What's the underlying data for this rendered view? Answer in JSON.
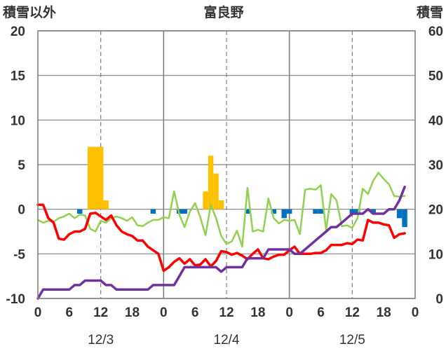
{
  "chart_data": {
    "type": "line",
    "title": "富良野",
    "left_axis_label": "積雪以外",
    "right_axis_label": "積雪",
    "left_ylim": [
      -10,
      20
    ],
    "left_ticks": [
      "20",
      "15",
      "10",
      "5",
      "0",
      "-5",
      "-10"
    ],
    "right_ylim": [
      0,
      60
    ],
    "right_ticks": [
      "60",
      "50",
      "40",
      "30",
      "20",
      "10",
      "0"
    ],
    "x_hours": [
      0,
      72
    ],
    "x_tick_labels": [
      "0",
      "6",
      "12",
      "18",
      "0",
      "6",
      "12",
      "18",
      "0",
      "6",
      "12",
      "18",
      "0"
    ],
    "date_labels": [
      "12/3",
      "12/4",
      "12/5"
    ],
    "grid": true,
    "colors": {
      "temperature": "#ff0000",
      "temperature_2": "#92d050",
      "snow_depth": "#7030a0",
      "snowfall": "#ffc000",
      "change": "#0070c0",
      "grid": "#808080"
    },
    "series": [
      {
        "key": "temperature",
        "axis": "left",
        "type": "line",
        "points": [
          [
            0,
            0.5
          ],
          [
            1,
            0.5
          ],
          [
            2,
            -1
          ],
          [
            3,
            -1.5
          ],
          [
            4,
            -3.3
          ],
          [
            5,
            -3.4
          ],
          [
            6,
            -2.8
          ],
          [
            7,
            -2.5
          ],
          [
            8,
            -2.5
          ],
          [
            9,
            -2.2
          ],
          [
            10,
            -0.5
          ],
          [
            11,
            -0.4
          ],
          [
            12,
            -0.8
          ],
          [
            13,
            -1.2
          ],
          [
            14,
            -0.7
          ],
          [
            15,
            -1.8
          ],
          [
            16,
            -2.5
          ],
          [
            17,
            -2.8
          ],
          [
            18,
            -3.0
          ],
          [
            19,
            -3.5
          ],
          [
            20,
            -3.5
          ],
          [
            21,
            -4.2
          ],
          [
            22,
            -4.6
          ],
          [
            23,
            -5.0
          ],
          [
            24,
            -6.9
          ],
          [
            25,
            -6.5
          ],
          [
            26,
            -5.9
          ],
          [
            27,
            -5.5
          ],
          [
            28,
            -6.1
          ],
          [
            29,
            -5.6
          ],
          [
            30,
            -6.3
          ],
          [
            31,
            -6.2
          ],
          [
            32,
            -5.6
          ],
          [
            33,
            -6.4
          ],
          [
            34,
            -5.8
          ],
          [
            35,
            -4.7
          ],
          [
            36,
            -4.8
          ],
          [
            37,
            -5.1
          ],
          [
            38,
            -4.9
          ],
          [
            39,
            -5.2
          ],
          [
            40,
            -5.6
          ],
          [
            41,
            -5.0
          ],
          [
            42,
            -4.5
          ],
          [
            43,
            -5.5
          ],
          [
            44,
            -5.6
          ],
          [
            45,
            -5.3
          ],
          [
            46,
            -5.1
          ],
          [
            47,
            -5.1
          ],
          [
            48,
            -4.6
          ],
          [
            49,
            -4.2
          ],
          [
            50,
            -5.0
          ],
          [
            51,
            -5.0
          ],
          [
            52,
            -5.0
          ],
          [
            53,
            -4.9
          ],
          [
            54,
            -4.9
          ],
          [
            55,
            -4.6
          ],
          [
            56,
            -4.0
          ],
          [
            57,
            -4.0
          ],
          [
            58,
            -4.0
          ],
          [
            59,
            -3.8
          ],
          [
            60,
            -3.9
          ],
          [
            61,
            -3.4
          ],
          [
            62,
            -3.5
          ],
          [
            63,
            -1.2
          ],
          [
            64,
            -1.5
          ],
          [
            65,
            -1.5
          ],
          [
            66,
            -1.7
          ],
          [
            67,
            -1.8
          ],
          [
            68,
            -3.2
          ],
          [
            69,
            -2.8
          ],
          [
            70,
            -2.7
          ]
        ]
      },
      {
        "key": "temperature_2",
        "axis": "left",
        "type": "line",
        "points": [
          [
            0,
            -1.2
          ],
          [
            1,
            -1.5
          ],
          [
            2,
            -1.3
          ],
          [
            3,
            -1.4
          ],
          [
            4,
            -1.0
          ],
          [
            5,
            -0.8
          ],
          [
            6,
            -0.5
          ],
          [
            7,
            -1.0
          ],
          [
            8,
            -0.6
          ],
          [
            9,
            -0.7
          ],
          [
            10,
            -2.2
          ],
          [
            11,
            -2.5
          ],
          [
            12,
            -1.3
          ],
          [
            13,
            -1.5
          ],
          [
            14,
            -1.0
          ],
          [
            15,
            -0.8
          ],
          [
            16,
            -1.0
          ],
          [
            17,
            -1.3
          ],
          [
            18,
            -0.9
          ],
          [
            19,
            -1.8
          ],
          [
            20,
            -1.9
          ],
          [
            21,
            -1.5
          ],
          [
            22,
            -1.2
          ],
          [
            23,
            -1.2
          ],
          [
            24,
            -0.9
          ],
          [
            25,
            -1.0
          ],
          [
            26,
            2.0
          ],
          [
            27,
            -0.6
          ],
          [
            28,
            -2.0
          ],
          [
            29,
            -0.3
          ],
          [
            30,
            0.7
          ],
          [
            31,
            -0.9
          ],
          [
            32,
            -2.9
          ],
          [
            33,
            0.5
          ],
          [
            34,
            -1.0
          ],
          [
            35,
            -3.0
          ],
          [
            36,
            -3.9
          ],
          [
            37,
            -3.6
          ],
          [
            38,
            -2.4
          ],
          [
            39,
            -4.2
          ],
          [
            40,
            2.4
          ],
          [
            41,
            -2.5
          ],
          [
            42,
            -2.3
          ],
          [
            43,
            -2.5
          ],
          [
            44,
            1.2
          ],
          [
            45,
            -1.0
          ],
          [
            46,
            -1.6
          ],
          [
            47,
            -1.2
          ],
          [
            48,
            -1.3
          ],
          [
            49,
            -1.2
          ],
          [
            50,
            -2.8
          ],
          [
            51,
            2.2
          ],
          [
            52,
            2.3
          ],
          [
            53,
            2.2
          ],
          [
            54,
            2.7
          ],
          [
            55,
            -2.3
          ],
          [
            56,
            1.7
          ],
          [
            57,
            1.0
          ],
          [
            58,
            -1.9
          ],
          [
            59,
            -1.8
          ],
          [
            60,
            -2.1
          ],
          [
            61,
            -1.0
          ],
          [
            62,
            2.3
          ],
          [
            63,
            1.7
          ],
          [
            64,
            3.2
          ],
          [
            65,
            4.1
          ],
          [
            66,
            3.4
          ],
          [
            67,
            2.8
          ],
          [
            68,
            1.5
          ],
          [
            69,
            1.4
          ],
          [
            70,
            1.5
          ]
        ]
      },
      {
        "key": "snow_depth",
        "axis": "right",
        "type": "line",
        "points": [
          [
            0,
            0
          ],
          [
            1,
            2
          ],
          [
            2,
            2
          ],
          [
            3,
            2
          ],
          [
            4,
            2
          ],
          [
            5,
            2
          ],
          [
            6,
            2
          ],
          [
            7,
            3
          ],
          [
            8,
            3
          ],
          [
            9,
            4
          ],
          [
            10,
            4
          ],
          [
            11,
            4
          ],
          [
            12,
            4
          ],
          [
            13,
            3
          ],
          [
            14,
            3
          ],
          [
            15,
            2
          ],
          [
            16,
            2
          ],
          [
            17,
            2
          ],
          [
            18,
            2
          ],
          [
            19,
            2
          ],
          [
            20,
            2
          ],
          [
            21,
            2
          ],
          [
            22,
            3
          ],
          [
            23,
            3
          ],
          [
            24,
            3
          ],
          [
            25,
            3
          ],
          [
            26,
            3
          ],
          [
            27,
            5
          ],
          [
            28,
            7
          ],
          [
            29,
            7
          ],
          [
            30,
            7
          ],
          [
            31,
            7
          ],
          [
            32,
            7
          ],
          [
            33,
            7
          ],
          [
            34,
            7
          ],
          [
            35,
            6
          ],
          [
            36,
            7
          ],
          [
            37,
            7
          ],
          [
            38,
            7
          ],
          [
            39,
            7
          ],
          [
            40,
            9
          ],
          [
            41,
            9
          ],
          [
            42,
            9
          ],
          [
            43,
            9
          ],
          [
            44,
            11
          ],
          [
            45,
            11
          ],
          [
            46,
            11
          ],
          [
            47,
            11
          ],
          [
            48,
            11
          ],
          [
            49,
            10
          ],
          [
            50,
            10
          ],
          [
            51,
            11
          ],
          [
            52,
            12
          ],
          [
            53,
            13
          ],
          [
            54,
            14
          ],
          [
            55,
            15
          ],
          [
            56,
            16
          ],
          [
            57,
            16
          ],
          [
            58,
            17
          ],
          [
            59,
            18
          ],
          [
            60,
            19
          ],
          [
            61,
            19
          ],
          [
            62,
            19
          ],
          [
            63,
            20
          ],
          [
            64,
            19
          ],
          [
            65,
            19
          ],
          [
            66,
            19
          ],
          [
            67,
            20
          ],
          [
            68,
            20
          ],
          [
            69,
            22
          ],
          [
            70,
            25
          ]
        ]
      },
      {
        "key": "snowfall",
        "axis": "left",
        "type": "bar",
        "points": [
          [
            10,
            7
          ],
          [
            11,
            7
          ],
          [
            12,
            7
          ],
          [
            13,
            1
          ],
          [
            32,
            2
          ],
          [
            33,
            6
          ],
          [
            34,
            4
          ],
          [
            35,
            1
          ]
        ]
      },
      {
        "key": "change",
        "axis": "left",
        "type": "bar",
        "points": [
          [
            8,
            -0.5
          ],
          [
            22,
            -0.5
          ],
          [
            27,
            -0.5
          ],
          [
            28,
            -0.5
          ],
          [
            40,
            -0.5
          ],
          [
            45,
            -0.5
          ],
          [
            47,
            -1
          ],
          [
            48,
            -0.5
          ],
          [
            53,
            -0.5
          ],
          [
            54,
            -0.5
          ],
          [
            60,
            -0.5
          ],
          [
            61,
            -0.5
          ],
          [
            64,
            -0.5
          ],
          [
            69,
            -1
          ],
          [
            70,
            -2
          ]
        ]
      }
    ]
  }
}
